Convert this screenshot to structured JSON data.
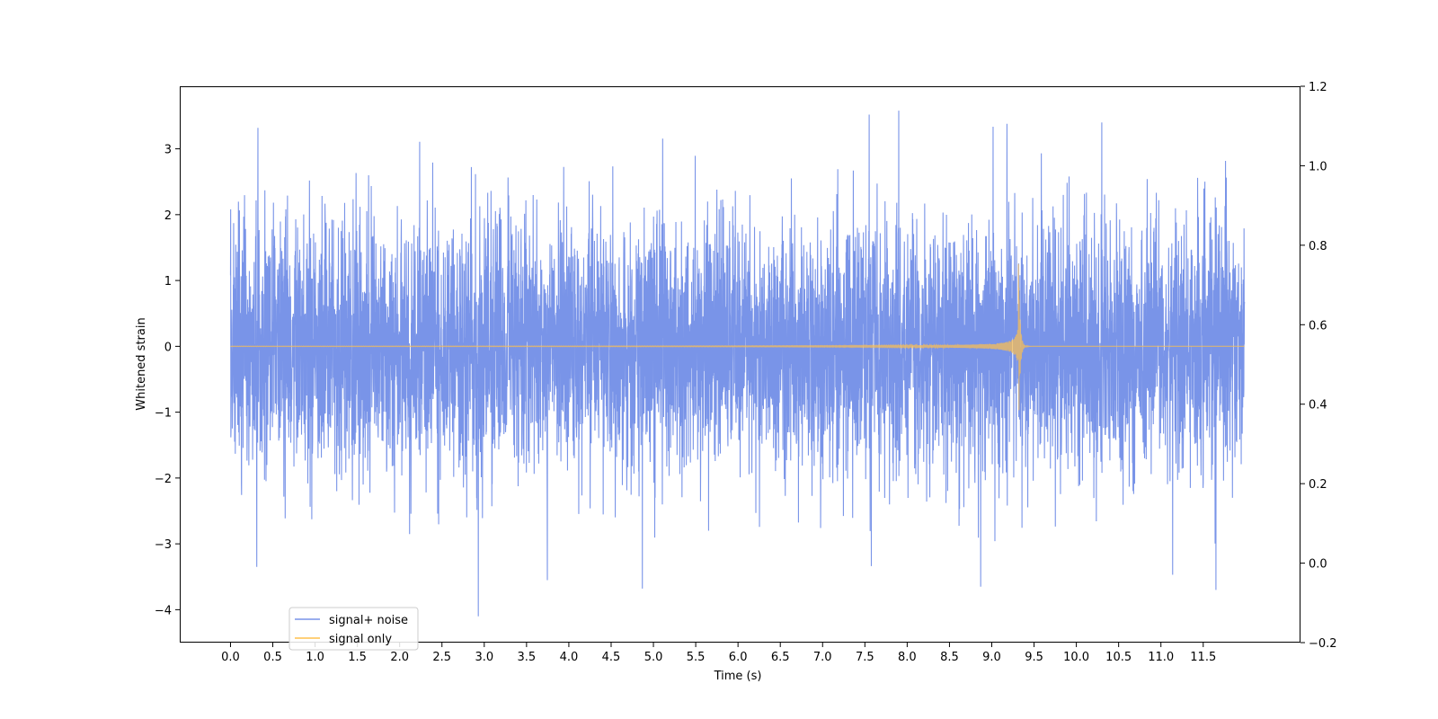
{
  "chart_data": {
    "type": "line",
    "title": "",
    "xlabel": "Time (s)",
    "ylabel": "Whitened strain",
    "xlim": [
      -0.6,
      12.65
    ],
    "ylim": [
      -4.5,
      3.95
    ],
    "y2lim": [
      -0.2,
      1.2
    ],
    "x_ticks": [
      0.0,
      0.5,
      1.0,
      1.5,
      2.0,
      2.5,
      3.0,
      3.5,
      4.0,
      4.5,
      5.0,
      5.5,
      6.0,
      6.5,
      7.0,
      7.5,
      8.0,
      8.5,
      9.0,
      9.5,
      10.0,
      10.5,
      11.0,
      11.5
    ],
    "x_tick_labels": [
      "0.0",
      "0.5",
      "1.0",
      "1.5",
      "2.0",
      "2.5",
      "3.0",
      "3.5",
      "4.0",
      "4.5",
      "5.0",
      "5.5",
      "6.0",
      "6.5",
      "7.0",
      "7.5",
      "8.0",
      "8.5",
      "9.0",
      "9.5",
      "10.0",
      "10.5",
      "11.0",
      "11.5"
    ],
    "y_ticks": [
      -4,
      -3,
      -2,
      -1,
      0,
      1,
      2,
      3
    ],
    "y_tick_labels": [
      "−4",
      "−3",
      "−2",
      "−1",
      "0",
      "1",
      "2",
      "3"
    ],
    "y2_ticks": [
      -0.2,
      0.0,
      0.2,
      0.4,
      0.6,
      0.8,
      1.0,
      1.2
    ],
    "y2_tick_labels": [
      "−0.2",
      "0.0",
      "0.2",
      "0.4",
      "0.6",
      "0.8",
      "1.0",
      "1.2"
    ],
    "grid": false,
    "legend_position": "lower-left",
    "series": [
      {
        "name": "signal+ noise",
        "color": "#7994e8",
        "x_range": [
          0.0,
          11.99
        ],
        "sample_rate_hz": 512,
        "noise_std": 0.95,
        "peak_max": 3.58,
        "peak_min": -4.1,
        "notable_extremes": [
          {
            "x": 0.31,
            "y": 3.15
          },
          {
            "x": 0.31,
            "y": -3.35
          },
          {
            "x": 2.93,
            "y": -4.1
          },
          {
            "x": 7.9,
            "y": 3.58
          },
          {
            "x": 7.55,
            "y": 3.52
          },
          {
            "x": 8.87,
            "y": -3.65
          },
          {
            "x": 4.87,
            "y": -3.68
          },
          {
            "x": 11.65,
            "y": -3.7
          },
          {
            "x": 10.3,
            "y": 3.4
          },
          {
            "x": 9.18,
            "y": 3.38
          }
        ]
      },
      {
        "name": "signal only",
        "color": "#ffc04d",
        "x_range": [
          0.0,
          11.99
        ],
        "type": "chirp",
        "merger_time": 9.32,
        "peak_amplitude": 1.25,
        "trough_amplitude": -0.97,
        "amplitude_at_8s": 0.16,
        "amplitude_at_6s": 0.04
      }
    ]
  }
}
